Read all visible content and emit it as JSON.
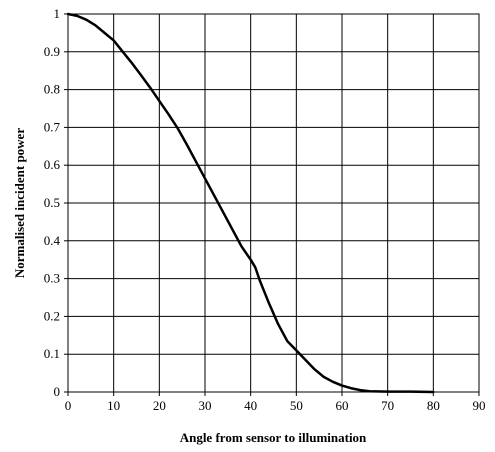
{
  "chart_data": {
    "type": "line",
    "title": "",
    "xlabel": "Angle from sensor to illumination",
    "ylabel": "Normalised  incident  power",
    "xlim": [
      0,
      90
    ],
    "ylim": [
      0,
      1
    ],
    "xticks": [
      0,
      10,
      20,
      30,
      40,
      50,
      60,
      70,
      80,
      90
    ],
    "yticks": [
      0,
      0.1,
      0.2,
      0.3,
      0.4,
      0.5,
      0.6,
      0.7,
      0.8,
      0.9,
      1
    ],
    "xtick_labels": [
      "0",
      "10",
      "20",
      "30",
      "40",
      "50",
      "60",
      "70",
      "80",
      "90"
    ],
    "ytick_labels": [
      "0",
      "0.1",
      "0.2",
      "0.3",
      "0.4",
      "0.5",
      "0.6",
      "0.7",
      "0.8",
      "0.9",
      "1"
    ],
    "grid": true,
    "legend": "none",
    "series": [
      {
        "color": "#000000",
        "x": [
          0,
          2,
          4,
          6,
          8,
          10,
          12,
          14,
          16,
          18,
          20,
          22,
          24,
          26,
          28,
          30,
          32,
          34,
          36,
          38,
          40,
          41,
          42,
          44,
          46,
          48,
          50,
          52,
          54,
          56,
          58,
          60,
          62,
          64,
          66,
          70,
          75,
          80
        ],
        "y": [
          1.0,
          0.995,
          0.985,
          0.97,
          0.95,
          0.93,
          0.9,
          0.87,
          0.838,
          0.805,
          0.77,
          0.735,
          0.698,
          0.655,
          0.61,
          0.565,
          0.52,
          0.475,
          0.43,
          0.385,
          0.35,
          0.33,
          0.295,
          0.235,
          0.18,
          0.135,
          0.11,
          0.085,
          0.06,
          0.04,
          0.027,
          0.017,
          0.01,
          0.005,
          0.002,
          0.001,
          0.001,
          0.0
        ]
      }
    ]
  }
}
